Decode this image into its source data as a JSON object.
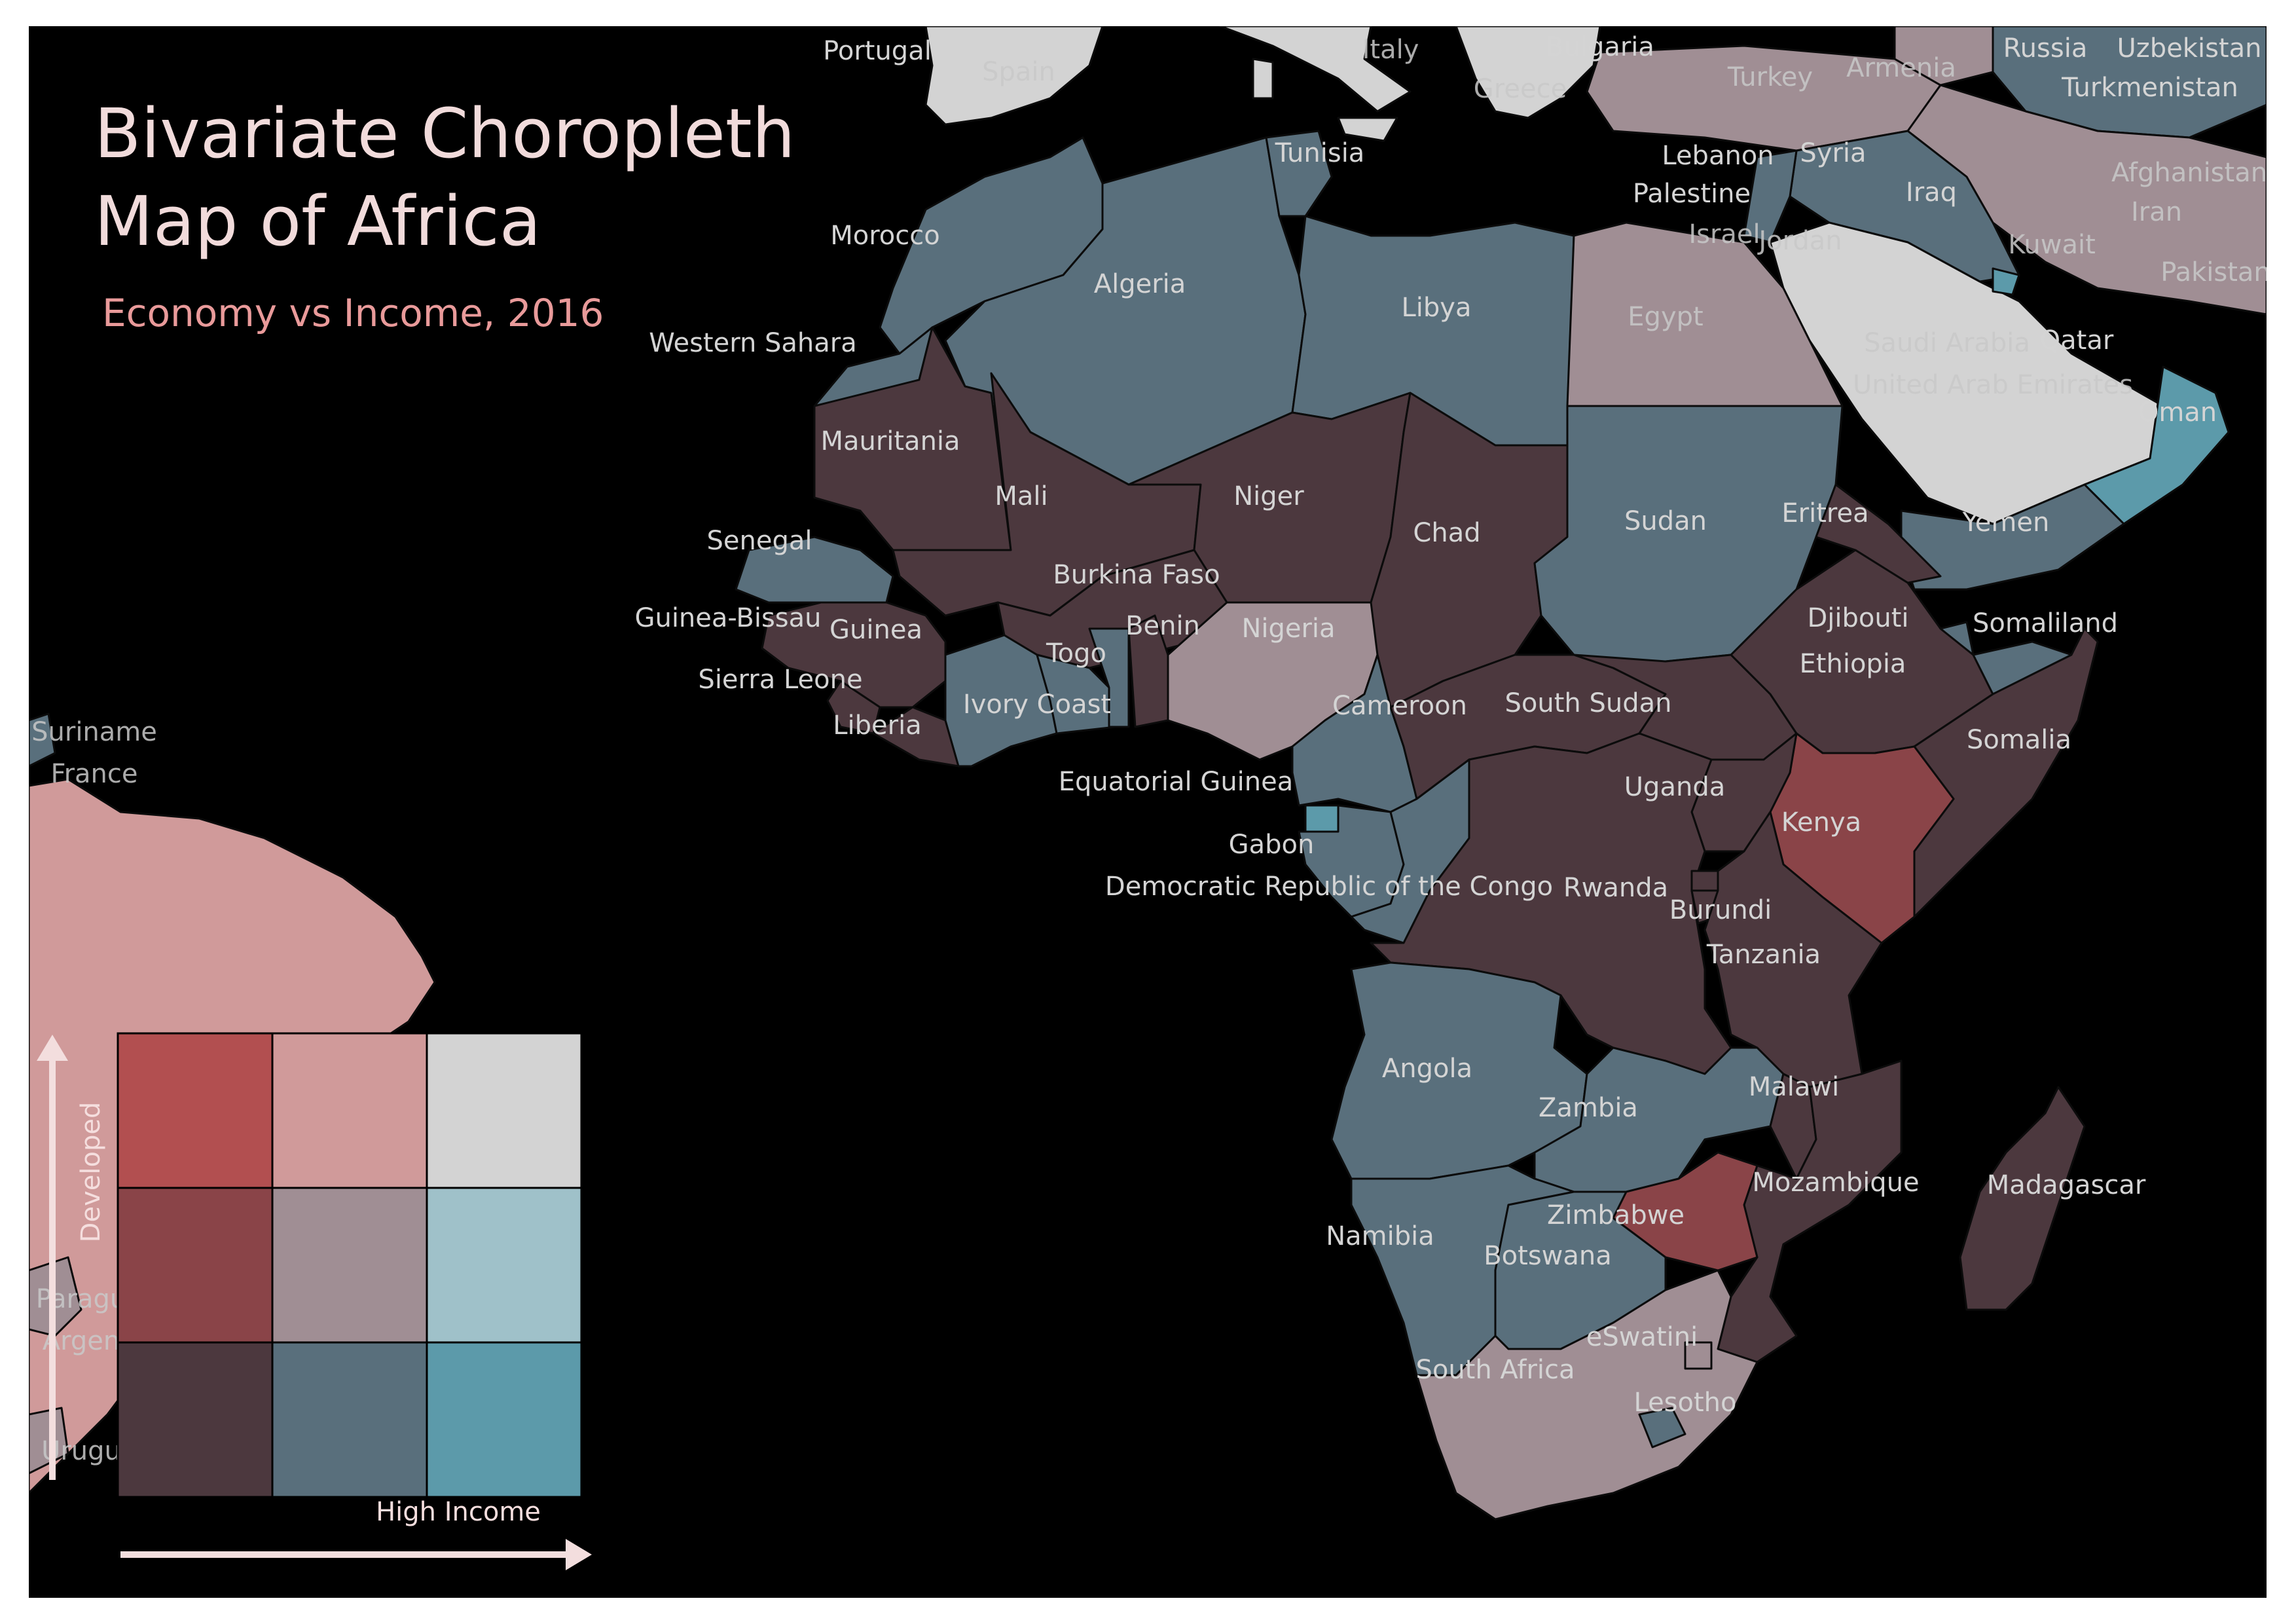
{
  "title_line1": "Bivariate Choropleth",
  "title_line2": "Map of Africa",
  "subtitle": "Economy vs Income, 2016",
  "legend": {
    "y_axis_label": "Developed",
    "x_axis_label": "High Income",
    "grid_colors": [
      [
        "#b24f50",
        "#d09a9a",
        "#d3d3d3"
      ],
      [
        "#8a4448",
        "#a08e94",
        "#9fc1c9"
      ],
      [
        "#4c383e",
        "#596f7c",
        "#5c9aaa"
      ]
    ]
  },
  "palette": {
    "dark_maroon": "#4c383e",
    "slate": "#596f7c",
    "teal": "#5c9aaa",
    "red": "#8a4448",
    "mauve": "#a08e94",
    "pink": "#d09a9a",
    "light": "#d3d3d3"
  },
  "labels": {
    "portugal": "Portugal",
    "spain": "Spain",
    "italy": "Italy",
    "bulgaria": "Bulgaria",
    "greece": "Greece",
    "turkey": "Turkey",
    "armenia": "Armenia",
    "russia": "Russia",
    "uzbekistan": "Uzbekistan",
    "turkmenistan": "Turkmenistan",
    "tunisia": "Tunisia",
    "lebanon": "Lebanon",
    "syria": "Syria",
    "palestine": "Palestine",
    "iraq": "Iraq",
    "afghanistan": "Afghanistan",
    "iran": "Iran",
    "israel": "Israel",
    "jordan": "Jordan",
    "kuwait": "Kuwait",
    "pakistan": "Pakistan",
    "morocco": "Morocco",
    "algeria": "Algeria",
    "libya": "Libya",
    "egypt": "Egypt",
    "saudi_arabia": "Saudi Arabia",
    "qatar": "Qatar",
    "uae": "United Arab Emirates",
    "oman": "Oman",
    "western_sahara": "Western Sahara",
    "mauritania": "Mauritania",
    "mali": "Mali",
    "niger": "Niger",
    "chad": "Chad",
    "sudan": "Sudan",
    "eritrea": "Eritrea",
    "yemen": "Yemen",
    "senegal": "Senegal",
    "burkina_faso": "Burkina Faso",
    "guinea_bissau": "Guinea-Bissau",
    "guinea": "Guinea",
    "benin": "Benin",
    "nigeria": "Nigeria",
    "djibouti": "Djibouti",
    "somaliland": "Somaliland",
    "togo": "Togo",
    "ethiopia": "Ethiopia",
    "sierra_leone": "Sierra Leone",
    "ivory_coast": "Ivory Coast",
    "cameroon": "Cameroon",
    "south_sudan": "South Sudan",
    "liberia": "Liberia",
    "somalia": "Somalia",
    "equatorial_guinea": "Equatorial Guinea",
    "uganda": "Uganda",
    "kenya": "Kenya",
    "gabon": "Gabon",
    "drc": "Democratic Republic of the Congo",
    "rwanda": "Rwanda",
    "burundi": "Burundi",
    "tanzania": "Tanzania",
    "angola": "Angola",
    "malawi": "Malawi",
    "zambia": "Zambia",
    "mozambique": "Mozambique",
    "madagascar": "Madagascar",
    "zimbabwe": "Zimbabwe",
    "namibia": "Namibia",
    "botswana": "Botswana",
    "eswatini": "eSwatini",
    "south_africa": "South Africa",
    "lesotho": "Lesotho",
    "suriname": "Suriname",
    "france": "France",
    "paraguay": "Paragu",
    "argentina": "Argen",
    "uruguay": "Urugu"
  }
}
